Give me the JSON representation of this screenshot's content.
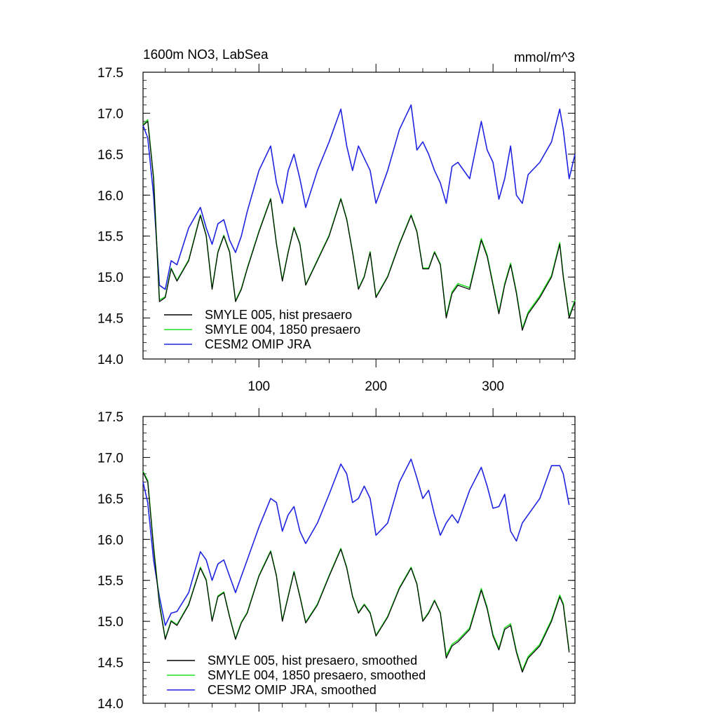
{
  "chart_data": [
    {
      "type": "line",
      "title": "1600m NO3, LabSea",
      "units": "mmol/m^3",
      "xlim": [
        1,
        370
      ],
      "ylim": [
        14.0,
        17.5
      ],
      "x_ticks": [
        100,
        200,
        300
      ],
      "y_ticks": [
        "14.0",
        "14.5",
        "15.0",
        "15.5",
        "16.0",
        "16.5",
        "17.0",
        "17.5"
      ],
      "legend_position": "bottom-left",
      "grid": false,
      "x_knots": [
        1,
        5,
        10,
        15,
        20,
        25,
        30,
        40,
        50,
        55,
        60,
        65,
        70,
        75,
        80,
        85,
        90,
        100,
        110,
        115,
        120,
        125,
        130,
        135,
        140,
        150,
        160,
        170,
        175,
        180,
        185,
        190,
        195,
        200,
        210,
        220,
        230,
        235,
        240,
        245,
        250,
        255,
        260,
        265,
        270,
        280,
        290,
        295,
        300,
        305,
        310,
        315,
        320,
        325,
        330,
        340,
        350,
        357,
        360,
        365,
        370
      ],
      "series": [
        {
          "name": "SMYLE 005, hist presaero",
          "color": "#000000",
          "values": [
            16.85,
            16.9,
            16.2,
            14.7,
            14.75,
            15.1,
            14.95,
            15.2,
            15.75,
            15.5,
            14.85,
            15.3,
            15.5,
            15.3,
            14.7,
            14.85,
            15.1,
            15.55,
            15.95,
            15.4,
            14.95,
            15.3,
            15.6,
            15.4,
            14.9,
            15.2,
            15.5,
            15.95,
            15.7,
            15.3,
            14.85,
            15.0,
            15.3,
            14.75,
            15.0,
            15.4,
            15.75,
            15.55,
            15.1,
            15.1,
            15.3,
            15.15,
            14.5,
            14.8,
            14.9,
            14.85,
            15.45,
            15.25,
            14.9,
            14.55,
            14.9,
            15.15,
            14.8,
            14.35,
            14.55,
            14.75,
            15.0,
            15.4,
            15.0,
            14.5,
            14.7
          ]
        },
        {
          "name": "SMYLE 004, 1850 presaero",
          "color": "#22dd22",
          "values": [
            16.86,
            16.92,
            16.22,
            14.72,
            14.76,
            15.11,
            14.96,
            15.21,
            15.76,
            15.51,
            14.86,
            15.31,
            15.51,
            15.31,
            14.71,
            14.86,
            15.11,
            15.56,
            15.96,
            15.41,
            14.96,
            15.31,
            15.61,
            15.41,
            14.91,
            15.21,
            15.51,
            15.96,
            15.71,
            15.31,
            14.86,
            15.01,
            15.31,
            14.76,
            15.01,
            15.41,
            15.76,
            15.56,
            15.11,
            15.11,
            15.31,
            15.16,
            14.52,
            14.82,
            14.92,
            14.87,
            15.47,
            15.27,
            14.92,
            14.57,
            14.92,
            15.17,
            14.82,
            14.37,
            14.57,
            14.77,
            15.02,
            15.42,
            15.02,
            14.52,
            14.72
          ]
        },
        {
          "name": "CESM2 OMIP JRA",
          "color": "#1f24e0",
          "values": [
            16.85,
            16.7,
            16.0,
            14.9,
            14.85,
            15.2,
            15.15,
            15.6,
            15.85,
            15.6,
            15.4,
            15.65,
            15.7,
            15.45,
            15.3,
            15.5,
            15.8,
            16.3,
            16.6,
            16.15,
            15.9,
            16.3,
            16.5,
            16.2,
            15.85,
            16.3,
            16.65,
            17.05,
            16.6,
            16.3,
            16.6,
            16.45,
            16.3,
            15.9,
            16.3,
            16.8,
            17.1,
            16.55,
            16.65,
            16.5,
            16.3,
            16.15,
            15.9,
            16.35,
            16.4,
            16.2,
            16.9,
            16.55,
            16.4,
            15.95,
            16.2,
            16.6,
            16.0,
            15.9,
            16.25,
            16.4,
            16.65,
            17.05,
            16.8,
            16.2,
            16.5
          ]
        }
      ]
    },
    {
      "type": "line",
      "xlim": [
        1,
        370
      ],
      "ylim": [
        14.0,
        17.5
      ],
      "x_ticks": [
        100,
        200,
        300
      ],
      "y_ticks": [
        "14.0",
        "14.5",
        "15.0",
        "15.5",
        "16.0",
        "16.5",
        "17.0",
        "17.5"
      ],
      "legend_position": "bottom-left",
      "grid": false,
      "x_knots": [
        1,
        5,
        10,
        15,
        20,
        25,
        30,
        40,
        50,
        55,
        60,
        65,
        70,
        75,
        80,
        85,
        90,
        100,
        110,
        115,
        120,
        125,
        130,
        135,
        140,
        150,
        160,
        170,
        175,
        180,
        185,
        190,
        195,
        200,
        210,
        220,
        230,
        235,
        240,
        245,
        250,
        255,
        260,
        265,
        270,
        280,
        290,
        295,
        300,
        305,
        310,
        315,
        320,
        325,
        330,
        340,
        350,
        357,
        360,
        365
      ],
      "series": [
        {
          "name": "SMYLE 005, hist presaero, smoothed",
          "color": "#000000",
          "values": [
            16.82,
            16.7,
            15.9,
            15.2,
            14.78,
            15.0,
            14.95,
            15.2,
            15.65,
            15.5,
            15.0,
            15.3,
            15.35,
            15.05,
            14.78,
            14.98,
            15.1,
            15.55,
            15.85,
            15.55,
            15.0,
            15.3,
            15.6,
            15.3,
            14.98,
            15.2,
            15.55,
            15.88,
            15.65,
            15.3,
            15.1,
            15.2,
            15.1,
            14.82,
            15.05,
            15.4,
            15.65,
            15.45,
            15.0,
            15.1,
            15.25,
            15.1,
            14.55,
            14.7,
            14.75,
            14.9,
            15.38,
            15.15,
            14.82,
            14.65,
            14.9,
            14.95,
            14.62,
            14.38,
            14.55,
            14.7,
            15.0,
            15.3,
            15.2,
            14.62
          ]
        },
        {
          "name": "SMYLE 004, 1850 presaero, smoothed",
          "color": "#22dd22",
          "values": [
            16.83,
            16.72,
            15.92,
            15.22,
            14.79,
            15.01,
            14.96,
            15.21,
            15.66,
            15.51,
            15.01,
            15.31,
            15.36,
            15.06,
            14.79,
            14.99,
            15.11,
            15.56,
            15.86,
            15.56,
            15.01,
            15.31,
            15.61,
            15.31,
            14.99,
            15.21,
            15.56,
            15.89,
            15.66,
            15.31,
            15.11,
            15.21,
            15.11,
            14.83,
            15.06,
            15.41,
            15.66,
            15.46,
            15.01,
            15.11,
            15.26,
            15.11,
            14.58,
            14.72,
            14.77,
            14.92,
            15.4,
            15.17,
            14.84,
            14.67,
            14.92,
            14.97,
            14.64,
            14.4,
            14.57,
            14.72,
            15.02,
            15.32,
            15.22,
            14.64
          ]
        },
        {
          "name": "CESM2 OMIP JRA, smoothed",
          "color": "#1f24e0",
          "values": [
            16.7,
            16.45,
            15.75,
            15.3,
            14.95,
            15.1,
            15.12,
            15.35,
            15.85,
            15.75,
            15.5,
            15.7,
            15.75,
            15.55,
            15.35,
            15.55,
            15.75,
            16.15,
            16.5,
            16.45,
            16.1,
            16.3,
            16.4,
            16.1,
            15.95,
            16.2,
            16.55,
            16.92,
            16.8,
            16.45,
            16.5,
            16.65,
            16.5,
            16.05,
            16.2,
            16.7,
            16.98,
            16.75,
            16.5,
            16.6,
            16.3,
            16.05,
            16.2,
            16.3,
            16.2,
            16.6,
            16.88,
            16.65,
            16.38,
            16.4,
            16.55,
            16.1,
            15.98,
            16.2,
            16.3,
            16.5,
            16.9,
            16.9,
            16.8,
            16.42
          ]
        }
      ]
    }
  ]
}
